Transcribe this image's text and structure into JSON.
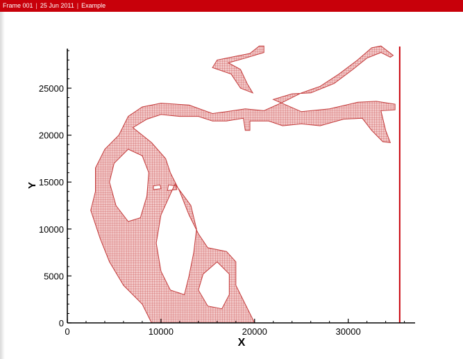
{
  "header": {
    "frame": "Frame 001",
    "date": "25 Jun 2011",
    "title": "Example",
    "separator": "|"
  },
  "colors": {
    "header_bg": "#c8000a",
    "mesh": "#c33a3a",
    "mesh_fill": "#f2c9c9",
    "boundary_line": "#c8000a",
    "axis": "#000000"
  },
  "chart_data": {
    "type": "mesh",
    "xlabel": "X",
    "ylabel": "Y",
    "xlim": [
      0,
      37500
    ],
    "ylim": [
      0,
      29500
    ],
    "x_ticks": [
      0,
      10000,
      20000,
      30000
    ],
    "x_tick_labels": [
      "0",
      "10000",
      "20000",
      "30000"
    ],
    "y_ticks": [
      0,
      5000,
      10000,
      15000,
      20000,
      25000
    ],
    "y_tick_labels": [
      "0",
      "5000",
      "10000",
      "15000",
      "20000",
      "25000"
    ],
    "boundary_x": 35500,
    "mesh_spacing": 500,
    "domain_outline": [
      [
        9000,
        0
      ],
      [
        8000,
        2000
      ],
      [
        6000,
        4000
      ],
      [
        4500,
        6500
      ],
      [
        3500,
        9000
      ],
      [
        2500,
        12000
      ],
      [
        3000,
        14000
      ],
      [
        3000,
        16500
      ],
      [
        4000,
        18500
      ],
      [
        5500,
        20000
      ],
      [
        6500,
        22000
      ],
      [
        8000,
        23000
      ],
      [
        10000,
        23400
      ],
      [
        13000,
        23200
      ],
      [
        15500,
        22300
      ],
      [
        17000,
        22500
      ],
      [
        19000,
        22800
      ],
      [
        21000,
        22600
      ],
      [
        23000,
        23500
      ],
      [
        25000,
        24500
      ],
      [
        27000,
        25200
      ],
      [
        29000,
        26500
      ],
      [
        31000,
        28000
      ],
      [
        32500,
        29300
      ],
      [
        33500,
        29500
      ],
      [
        34800,
        28500
      ],
      [
        34500,
        28300
      ],
      [
        33500,
        28800
      ],
      [
        32000,
        28200
      ],
      [
        30500,
        27000
      ],
      [
        28500,
        25500
      ],
      [
        26000,
        24500
      ],
      [
        24000,
        24400
      ],
      [
        22000,
        23800
      ],
      [
        25000,
        22500
      ],
      [
        28000,
        22800
      ],
      [
        31000,
        23500
      ],
      [
        33000,
        23600
      ],
      [
        35000,
        23300
      ],
      [
        35000,
        22700
      ],
      [
        33500,
        22600
      ],
      [
        34000,
        20500
      ],
      [
        34500,
        19200
      ],
      [
        33700,
        19300
      ],
      [
        32500,
        20500
      ],
      [
        31500,
        21800
      ],
      [
        29500,
        21700
      ],
      [
        27000,
        21000
      ],
      [
        25000,
        21200
      ],
      [
        23000,
        21000
      ],
      [
        21500,
        21500
      ],
      [
        19500,
        21500
      ],
      [
        19500,
        20500
      ],
      [
        19000,
        20500
      ],
      [
        18800,
        21800
      ],
      [
        17000,
        21500
      ],
      [
        15500,
        21500
      ],
      [
        14000,
        22000
      ],
      [
        12000,
        22000
      ],
      [
        10000,
        22200
      ],
      [
        8500,
        21700
      ],
      [
        7000,
        20800
      ],
      [
        9000,
        19200
      ],
      [
        10500,
        17500
      ],
      [
        11000,
        16000
      ],
      [
        12000,
        14000
      ],
      [
        13000,
        11500
      ],
      [
        14000,
        9500
      ],
      [
        15000,
        8000
      ],
      [
        17000,
        7600
      ],
      [
        18000,
        6500
      ],
      [
        18000,
        4000
      ],
      [
        19000,
        2000
      ],
      [
        20000,
        0
      ]
    ],
    "holes": [
      [
        [
          6500,
          18500
        ],
        [
          5000,
          17000
        ],
        [
          4500,
          15000
        ],
        [
          5200,
          12500
        ],
        [
          6500,
          10800
        ],
        [
          7800,
          11200
        ],
        [
          8500,
          13500
        ],
        [
          8700,
          16000
        ],
        [
          8000,
          17800
        ]
      ],
      [
        [
          11500,
          14800
        ],
        [
          10000,
          11500
        ],
        [
          9500,
          8500
        ],
        [
          10000,
          5500
        ],
        [
          11000,
          3500
        ],
        [
          12500,
          3000
        ],
        [
          13000,
          5000
        ],
        [
          13500,
          7500
        ],
        [
          13800,
          10000
        ],
        [
          13200,
          12500
        ]
      ],
      [
        [
          16000,
          6500
        ],
        [
          14500,
          5200
        ],
        [
          14000,
          3500
        ],
        [
          15000,
          1800
        ],
        [
          16500,
          1500
        ],
        [
          17300,
          3000
        ],
        [
          17300,
          5200
        ]
      ],
      [
        [
          10700,
          14100
        ],
        [
          11700,
          14200
        ],
        [
          11600,
          14600
        ],
        [
          10800,
          14700
        ]
      ],
      [
        [
          9200,
          14200
        ],
        [
          10000,
          14300
        ],
        [
          9900,
          14700
        ],
        [
          9200,
          14600
        ]
      ]
    ],
    "branch_north": [
      [
        18500,
        25000
      ],
      [
        17500,
        26500
      ],
      [
        15500,
        27200
      ],
      [
        16000,
        28000
      ],
      [
        17500,
        28300
      ],
      [
        19500,
        28700
      ],
      [
        20500,
        29500
      ],
      [
        21000,
        29500
      ],
      [
        21000,
        28800
      ],
      [
        19000,
        28200
      ],
      [
        17200,
        27700
      ],
      [
        18500,
        27000
      ],
      [
        19200,
        25500
      ],
      [
        19800,
        24500
      ]
    ]
  }
}
